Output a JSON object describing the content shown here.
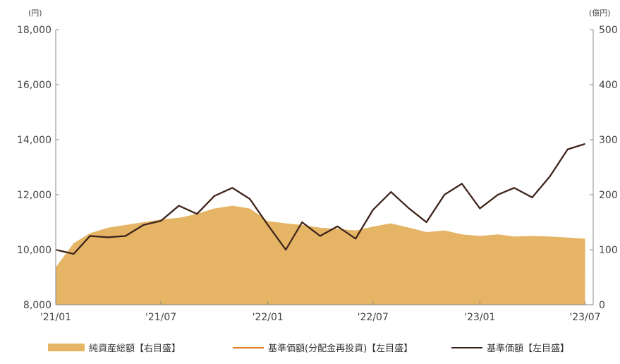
{
  "chart_data": {
    "type": "line",
    "units": {
      "left": "(円)",
      "right": "(億円)"
    },
    "left_axis": {
      "ticks": [
        "8,000",
        "10,000",
        "12,000",
        "14,000",
        "16,000",
        "18,000"
      ],
      "ylim": [
        8000,
        18000
      ]
    },
    "right_axis": {
      "ticks": [
        "0",
        "100",
        "200",
        "300",
        "400",
        "500"
      ],
      "ylim": [
        0,
        500
      ]
    },
    "x_ticks": [
      "'21/01",
      "'21/07",
      "'22/01",
      "'22/07",
      "'23/01",
      "'23/07"
    ],
    "colors": {
      "aum": "#e5b464",
      "nav_reinvested": "#e07a1f",
      "nav": "#3a2420"
    },
    "legend": [
      {
        "label": "純資産総額【右目盛】",
        "kind": "area",
        "color": "#e5b464"
      },
      {
        "label": "基準価額(分配金再投資)【左目盛】",
        "kind": "line",
        "color": "#e07a1f"
      },
      {
        "label": "基準価額【左目盛】",
        "kind": "line",
        "color": "#3a2420"
      }
    ],
    "series": [
      {
        "name": "純資産総額【右目盛】",
        "axis": "right",
        "kind": "area",
        "x": [
          "2021-01",
          "2021-02",
          "2021-03",
          "2021-04",
          "2021-05",
          "2021-06",
          "2021-07",
          "2021-08",
          "2021-09",
          "2021-10",
          "2021-11",
          "2021-12",
          "2022-01",
          "2022-02",
          "2022-03",
          "2022-04",
          "2022-05",
          "2022-06",
          "2022-07",
          "2022-08",
          "2022-09",
          "2022-10",
          "2022-11",
          "2022-12",
          "2023-01",
          "2023-02",
          "2023-03",
          "2023-04",
          "2023-05",
          "2023-06",
          "2023-07"
        ],
        "values": [
          68,
          112,
          130,
          140,
          145,
          150,
          155,
          158,
          165,
          175,
          180,
          175,
          152,
          148,
          145,
          140,
          138,
          135,
          142,
          148,
          140,
          132,
          135,
          128,
          125,
          128,
          124,
          125,
          124,
          122,
          120
        ]
      },
      {
        "name": "基準価額(分配金再投資)【左目盛】",
        "axis": "left",
        "kind": "line",
        "x": [
          "2021-01",
          "2021-02",
          "2021-03",
          "2021-04",
          "2021-05",
          "2021-06",
          "2021-07",
          "2021-08",
          "2021-09",
          "2021-10",
          "2021-11",
          "2021-12",
          "2022-01",
          "2022-02",
          "2022-03",
          "2022-04",
          "2022-05",
          "2022-06",
          "2022-07",
          "2022-08",
          "2022-09",
          "2022-10",
          "2022-11",
          "2022-12",
          "2023-01",
          "2023-02",
          "2023-03",
          "2023-04",
          "2023-05",
          "2023-06",
          "2023-07"
        ],
        "values": [
          10000,
          9850,
          10500,
          10450,
          10500,
          10900,
          11050,
          11600,
          11300,
          11950,
          12250,
          11850,
          10900,
          10000,
          11000,
          10500,
          10850,
          10400,
          11450,
          12100,
          11500,
          11000,
          12000,
          12400,
          11500,
          12000,
          12250,
          11900,
          12650,
          13650,
          13850
        ]
      },
      {
        "name": "基準価額【左目盛】",
        "axis": "left",
        "kind": "line",
        "x": [
          "2021-01",
          "2021-02",
          "2021-03",
          "2021-04",
          "2021-05",
          "2021-06",
          "2021-07",
          "2021-08",
          "2021-09",
          "2021-10",
          "2021-11",
          "2021-12",
          "2022-01",
          "2022-02",
          "2022-03",
          "2022-04",
          "2022-05",
          "2022-06",
          "2022-07",
          "2022-08",
          "2022-09",
          "2022-10",
          "2022-11",
          "2022-12",
          "2023-01",
          "2023-02",
          "2023-03",
          "2023-04",
          "2023-05",
          "2023-06",
          "2023-07"
        ],
        "values": [
          10000,
          9850,
          10500,
          10450,
          10500,
          10900,
          11050,
          11600,
          11300,
          11950,
          12250,
          11850,
          10900,
          10000,
          11000,
          10500,
          10850,
          10400,
          11450,
          12100,
          11500,
          11000,
          12000,
          12400,
          11500,
          12000,
          12250,
          11900,
          12650,
          13650,
          13850
        ]
      }
    ]
  }
}
